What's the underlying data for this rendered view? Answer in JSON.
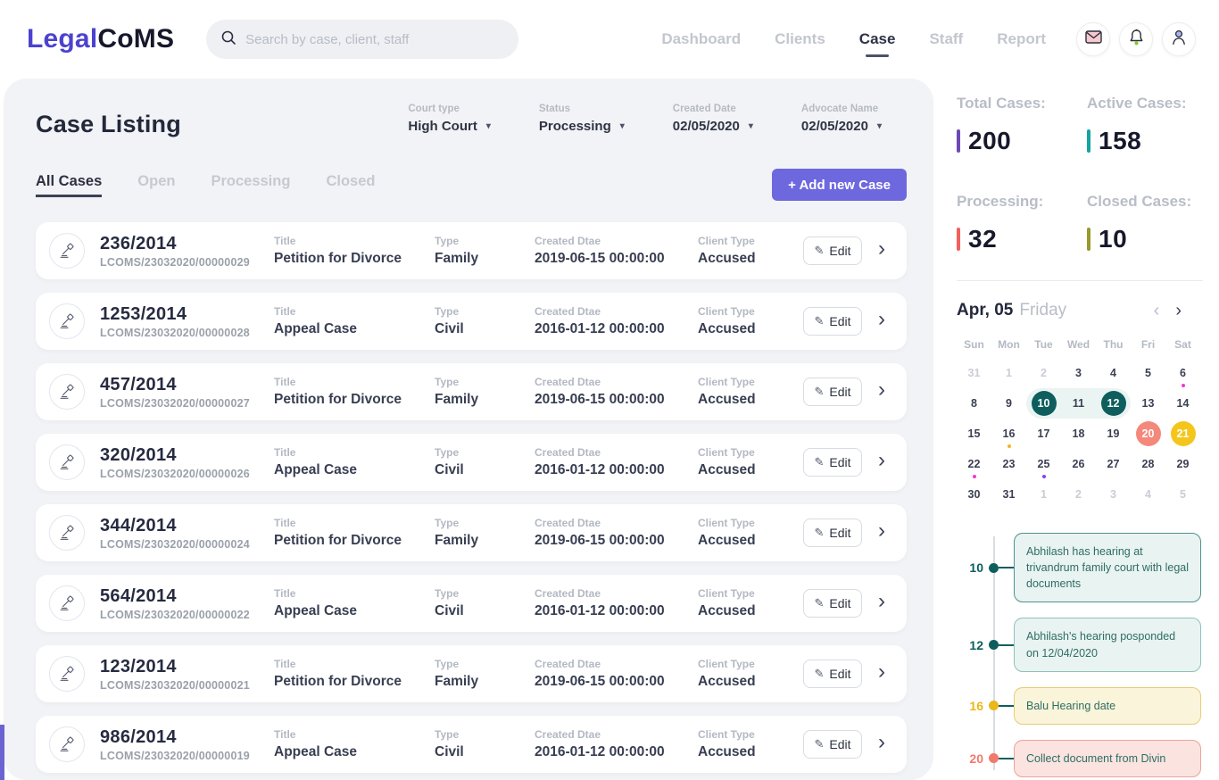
{
  "header": {
    "logo": {
      "part1": "Legal",
      "part2": "CoMS"
    },
    "search": {
      "placeholder": "Search by case, client, staff"
    },
    "nav": [
      {
        "label": "Dashboard",
        "active": false
      },
      {
        "label": "Clients",
        "active": false
      },
      {
        "label": "Case",
        "active": true
      },
      {
        "label": "Staff",
        "active": false
      },
      {
        "label": "Report",
        "active": false
      }
    ]
  },
  "main": {
    "title": "Case Listing",
    "filters": [
      {
        "label": "Court type",
        "value": "High Court"
      },
      {
        "label": "Status",
        "value": "Processing"
      },
      {
        "label": "Created Date",
        "value": "02/05/2020"
      },
      {
        "label": "Advocate Name",
        "value": "02/05/2020"
      }
    ],
    "tabs": [
      {
        "label": "All Cases",
        "active": true
      },
      {
        "label": "Open",
        "active": false
      },
      {
        "label": "Processing",
        "active": false
      },
      {
        "label": "Closed",
        "active": false
      }
    ],
    "add_button": "+  Add new Case",
    "field_labels": {
      "title": "Title",
      "type": "Type",
      "created": "Created Dtae",
      "client": "Client Type"
    },
    "edit_label": "Edit",
    "cases": [
      {
        "case_no": "236/2014",
        "ref": "LCOMS/23032020/00000029",
        "title": "Petition for Divorce",
        "type": "Family",
        "created": "2019-06-15 00:00:00",
        "client": "Accused"
      },
      {
        "case_no": "1253/2014",
        "ref": "LCOMS/23032020/00000028",
        "title": "Appeal Case",
        "type": "Civil",
        "created": "2016-01-12 00:00:00",
        "client": "Accused"
      },
      {
        "case_no": "457/2014",
        "ref": "LCOMS/23032020/00000027",
        "title": "Petition for Divorce",
        "type": "Family",
        "created": "2019-06-15 00:00:00",
        "client": "Accused"
      },
      {
        "case_no": "320/2014",
        "ref": "LCOMS/23032020/00000026",
        "title": "Appeal Case",
        "type": "Civil",
        "created": "2016-01-12 00:00:00",
        "client": "Accused"
      },
      {
        "case_no": "344/2014",
        "ref": "LCOMS/23032020/00000024",
        "title": "Petition for Divorce",
        "type": "Family",
        "created": "2019-06-15 00:00:00",
        "client": "Accused"
      },
      {
        "case_no": "564/2014",
        "ref": "LCOMS/23032020/00000022",
        "title": "Appeal Case",
        "type": "Civil",
        "created": "2016-01-12 00:00:00",
        "client": "Accused"
      },
      {
        "case_no": "123/2014",
        "ref": "LCOMS/23032020/00000021",
        "title": "Petition for Divorce",
        "type": "Family",
        "created": "2019-06-15 00:00:00",
        "client": "Accused"
      },
      {
        "case_no": "986/2014",
        "ref": "LCOMS/23032020/00000019",
        "title": "Appeal Case",
        "type": "Civil",
        "created": "2016-01-12 00:00:00",
        "client": "Accused"
      }
    ]
  },
  "stats": [
    {
      "label": "Total Cases:",
      "value": "200",
      "color": "#6f48b5"
    },
    {
      "label": "Active Cases:",
      "value": "158",
      "color": "#16a3a3"
    },
    {
      "label": "Processing:",
      "value": "32",
      "color": "#f25f5f"
    },
    {
      "label": "Closed Cases:",
      "value": "10",
      "color": "#97992c"
    }
  ],
  "calendar": {
    "title_bold": "Apr, 05",
    "title_light": "Friday",
    "prev_arrow": "‹",
    "next_arrow": "›",
    "day_headers": [
      "Sun",
      "Mon",
      "Tue",
      "Wed",
      "Thu",
      "Fri",
      "Sat"
    ],
    "circle_colors": {
      "teal": "#0e5e5e",
      "coral": "#f4897b",
      "yellow": "#f4c61c"
    },
    "weeks": [
      [
        {
          "d": "31",
          "muted": true
        },
        {
          "d": "1",
          "muted": true
        },
        {
          "d": "2",
          "muted": true
        },
        {
          "d": "3"
        },
        {
          "d": "4"
        },
        {
          "d": "5"
        },
        {
          "d": "6",
          "dot": "#ef3acb"
        }
      ],
      [
        {
          "d": "8"
        },
        {
          "d": "9"
        },
        {
          "d": "10",
          "circle": "teal",
          "range": "start"
        },
        {
          "d": "11",
          "range": "mid"
        },
        {
          "d": "12",
          "circle": "teal",
          "range": "end"
        },
        {
          "d": "13"
        },
        {
          "d": "14"
        }
      ],
      [
        {
          "d": "15"
        },
        {
          "d": "16",
          "dot": "#f0b429"
        },
        {
          "d": "17"
        },
        {
          "d": "18"
        },
        {
          "d": "19"
        },
        {
          "d": "20",
          "circle": "coral"
        },
        {
          "d": "21",
          "circle": "yellow"
        }
      ],
      [
        {
          "d": "22",
          "dot": "#ef3acb"
        },
        {
          "d": "23"
        },
        {
          "d": "25",
          "dot": "#8b3ff0"
        },
        {
          "d": "26"
        },
        {
          "d": "27"
        },
        {
          "d": "28"
        },
        {
          "d": "29"
        }
      ],
      [
        {
          "d": "30"
        },
        {
          "d": "31"
        },
        {
          "d": "1",
          "muted": true
        },
        {
          "d": "2",
          "muted": true
        },
        {
          "d": "3",
          "muted": true
        },
        {
          "d": "4",
          "muted": true
        },
        {
          "d": "5",
          "muted": true
        }
      ]
    ]
  },
  "timeline": {
    "events": [
      {
        "day": "10",
        "color": "#0e5e5e",
        "text": "Abhilash  has hearing at trivandrum family court  with legal documents",
        "box_bg": "#e9f3f1",
        "box_border": "#4d948d"
      },
      {
        "day": "12",
        "color": "#0e5e5e",
        "text": "Abhilash's hearing posponded on 12/04/2020",
        "box_bg": "#e9f3f1",
        "box_border": "#8fc2bc"
      },
      {
        "day": "16",
        "color": "#eab818",
        "text": "Balu Hearing date",
        "box_bg": "#faf4da",
        "box_border": "#e6cd74"
      },
      {
        "day": "20",
        "color": "#f2796c",
        "text": "Collect document from Divin",
        "box_bg": "#fbe3e0",
        "box_border": "#eba49b"
      }
    ]
  }
}
